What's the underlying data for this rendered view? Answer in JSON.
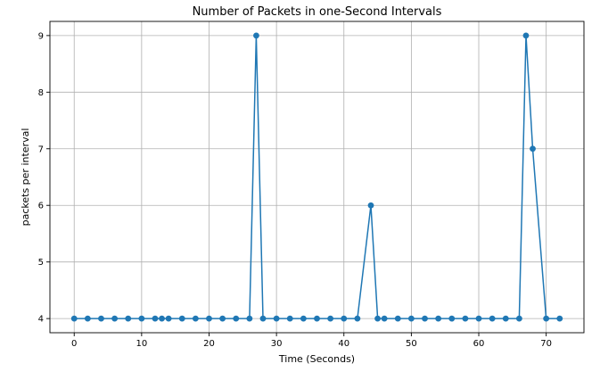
{
  "chart_data": {
    "type": "line",
    "title": "Number of Packets in one-Second Intervals",
    "xlabel": "Time (Seconds)",
    "ylabel": "packets per interval",
    "xlim": [
      -3.6,
      75.6
    ],
    "ylim": [
      3.75,
      9.25
    ],
    "xticks": [
      0,
      10,
      20,
      30,
      40,
      50,
      60,
      70
    ],
    "yticks": [
      4,
      5,
      6,
      7,
      8,
      9
    ],
    "grid": true,
    "marker": "circle",
    "color": "#1f77b4",
    "series": [
      {
        "x": [
          0,
          2,
          4,
          6,
          8,
          10,
          12,
          13,
          14,
          16,
          18,
          20,
          22,
          24,
          26,
          27,
          28,
          30,
          32,
          34,
          36,
          38,
          40,
          42,
          44,
          45,
          46,
          48,
          50,
          52,
          54,
          56,
          58,
          60,
          62,
          64,
          66,
          67,
          68,
          70,
          72
        ],
        "values": [
          4,
          4,
          4,
          4,
          4,
          4,
          4,
          4,
          4,
          4,
          4,
          4,
          4,
          4,
          4,
          9,
          4,
          4,
          4,
          4,
          4,
          4,
          4,
          4,
          6,
          4,
          4,
          4,
          4,
          4,
          4,
          4,
          4,
          4,
          4,
          4,
          4,
          9,
          7,
          4,
          4
        ]
      }
    ]
  }
}
